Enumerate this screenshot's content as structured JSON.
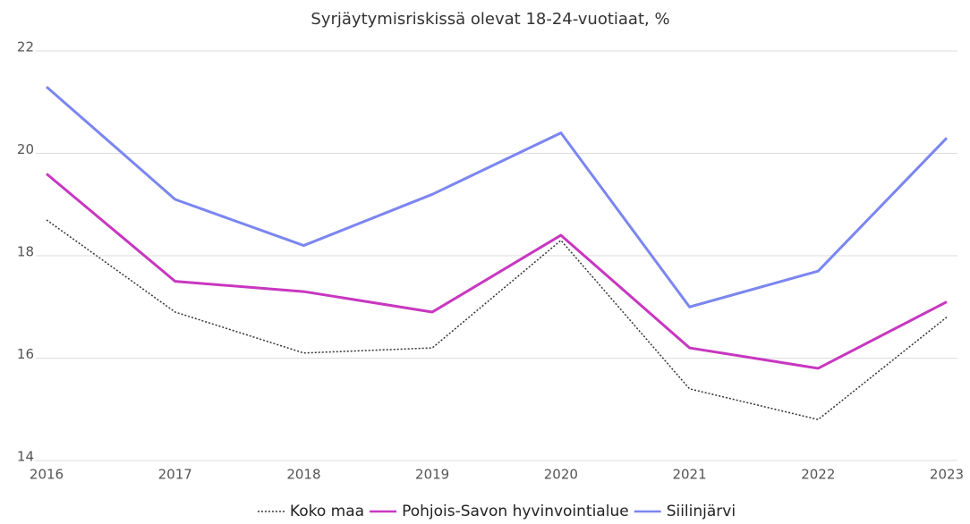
{
  "chart_data": {
    "type": "line",
    "title": "Syrjäytymisriskissä olevat 18-24-vuotiaat, %",
    "x": [
      2016,
      2017,
      2018,
      2019,
      2020,
      2021,
      2022,
      2023
    ],
    "xlim": [
      2016,
      2023
    ],
    "xticks": [
      2016,
      2017,
      2018,
      2019,
      2020,
      2021,
      2022,
      2023
    ],
    "ylim": [
      14,
      22
    ],
    "yticks": [
      14,
      16,
      18,
      20,
      22
    ],
    "grid": true,
    "legend": "bottom",
    "series": [
      {
        "name": "Koko maa",
        "color": "#333333",
        "style": "dotted",
        "values": [
          18.7,
          16.9,
          16.1,
          16.2,
          18.3,
          15.4,
          14.8,
          16.8
        ]
      },
      {
        "name": "Pohjois-Savon hyvinvointialue",
        "color": "#c837c0",
        "style": "solid",
        "values": [
          19.6,
          17.5,
          17.3,
          16.9,
          18.4,
          16.2,
          15.8,
          17.1
        ]
      },
      {
        "name": "Siilinjärvi",
        "color": "#7b86f0",
        "style": "solid",
        "values": [
          21.3,
          19.1,
          18.2,
          19.2,
          20.4,
          17.0,
          17.7,
          20.3
        ]
      }
    ]
  }
}
